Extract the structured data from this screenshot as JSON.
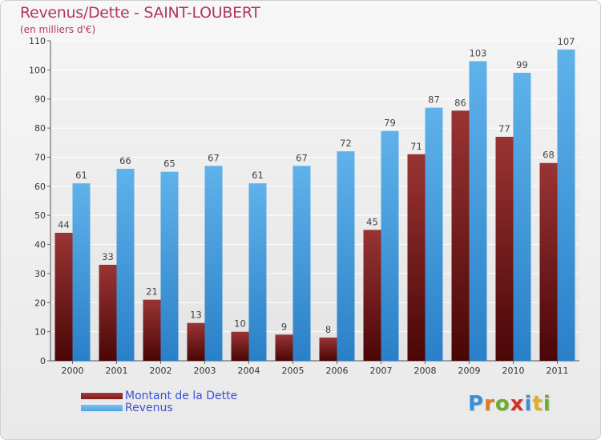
{
  "title": "Revenus/Dette - SAINT-LOUBERT",
  "subtitle": "(en milliers d'€)",
  "legend": {
    "items": [
      {
        "label": "Montant de la Dette",
        "color": "#7a1a1a"
      },
      {
        "label": "Revenus",
        "color": "#4aa3e3"
      }
    ]
  },
  "logo": {
    "letters": [
      {
        "char": "P",
        "color": "#3a8fd6"
      },
      {
        "char": "r",
        "color": "#e07a1e"
      },
      {
        "char": "o",
        "color": "#6ab02a"
      },
      {
        "char": "x",
        "color": "#d6302a"
      },
      {
        "char": "i",
        "color": "#3a8fd6"
      },
      {
        "char": "t",
        "color": "#e0b01e"
      },
      {
        "char": "i",
        "color": "#6ab02a"
      }
    ]
  },
  "chart_data": {
    "type": "bar",
    "categories": [
      "2000",
      "2001",
      "2002",
      "2003",
      "2004",
      "2005",
      "2006",
      "2007",
      "2008",
      "2009",
      "2010",
      "2011"
    ],
    "series": [
      {
        "name": "Montant de la Dette",
        "color": "#7a1a1a",
        "values": [
          44,
          33,
          21,
          13,
          10,
          9,
          8,
          45,
          71,
          86,
          77,
          68
        ]
      },
      {
        "name": "Revenus",
        "color": "#4aa3e3",
        "values": [
          61,
          66,
          65,
          67,
          61,
          67,
          72,
          79,
          87,
          103,
          99,
          107
        ]
      }
    ],
    "ylim": [
      0,
      110
    ],
    "yticks": [
      0,
      10,
      20,
      30,
      40,
      50,
      60,
      70,
      80,
      90,
      100,
      110
    ],
    "grid": true,
    "xlabel": "",
    "ylabel": ""
  }
}
